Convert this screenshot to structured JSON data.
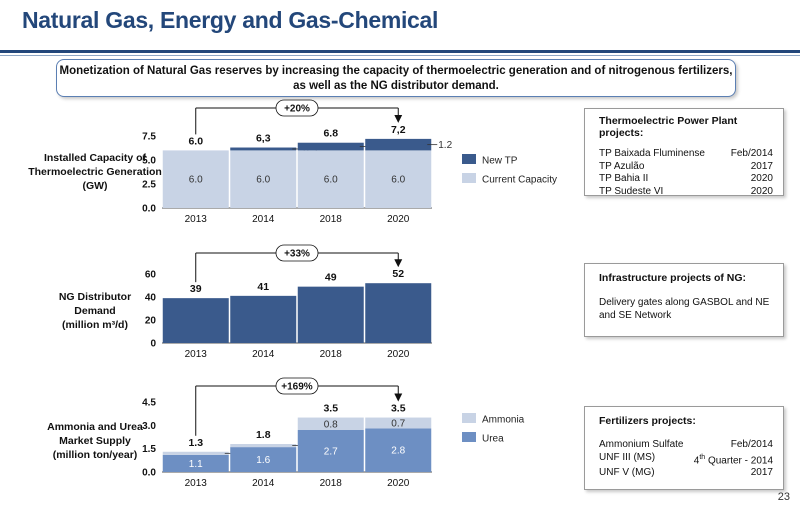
{
  "title": "Natural Gas, Energy and Gas-Chemical",
  "banner": {
    "line1": "Monetization of Natural Gas reserves by increasing the capacity of thermoelectric generation and of nitrogenous fertilizers,",
    "line2": "as well as the NG distributor demand."
  },
  "colors": {
    "dark": "#3a5a8c",
    "light": "#c8d3e5",
    "mid": "#6d8fc3",
    "navy": "#23477a"
  },
  "chart_data": [
    {
      "type": "bar",
      "side_label": [
        "Installed Capacity of",
        "Thermoelectric Generation",
        "(GW)"
      ],
      "categories": [
        "2013",
        "2014",
        "2018",
        "2020"
      ],
      "ylim": [
        0,
        7.5
      ],
      "yticks": [
        "0.0",
        "2.5",
        "5.0",
        "7.5"
      ],
      "series": [
        {
          "name": "Current Capacity",
          "values": [
            6.0,
            6.0,
            6.0,
            6.0
          ],
          "labels": [
            "6.0",
            "6.0",
            "6.0",
            "6.0"
          ]
        },
        {
          "name": "New TP",
          "values": [
            0,
            0.3,
            0.8,
            1.2
          ],
          "labels": [
            "",
            "0.3",
            "0.8",
            "1.2"
          ]
        }
      ],
      "totals": [
        "6.0",
        "6,3",
        "6.8",
        "7,2"
      ],
      "growth": "+20%"
    },
    {
      "type": "bar",
      "side_label": [
        "NG Distributor",
        "Demand",
        "(million m³/d)"
      ],
      "categories": [
        "2013",
        "2014",
        "2018",
        "2020"
      ],
      "ylim": [
        0,
        60
      ],
      "yticks": [
        "0",
        "20",
        "40",
        "60"
      ],
      "series": [
        {
          "values": [
            39,
            41,
            49,
            52
          ]
        }
      ],
      "totals": [
        "39",
        "41",
        "49",
        "52"
      ],
      "growth": "+33%"
    },
    {
      "type": "bar",
      "side_label": [
        "Ammonia and Urea",
        "Market Supply",
        "(million ton/year)"
      ],
      "categories": [
        "2013",
        "2014",
        "2018",
        "2020"
      ],
      "ylim": [
        0,
        4.5
      ],
      "yticks": [
        "0.0",
        "1.5",
        "3.0",
        "4.5"
      ],
      "series": [
        {
          "name": "Urea",
          "values": [
            1.1,
            1.6,
            2.7,
            2.8
          ],
          "labels": [
            "1.1",
            "1.6",
            "2.7",
            "2.8"
          ]
        },
        {
          "name": "Ammonia",
          "values": [
            0.2,
            0.2,
            0.8,
            0.7
          ],
          "labels": [
            "0.2",
            "0.2",
            "0.8",
            "0.7"
          ]
        }
      ],
      "totals": [
        "1.3",
        "1.8",
        "3.5",
        "3.5"
      ],
      "growth": "+169%"
    }
  ],
  "boxes": {
    "thermo": {
      "heading": "Thermoelectric Power Plant projects:",
      "rows": [
        {
          "name": "TP Baixada Fluminense",
          "date": "Feb/2014"
        },
        {
          "name": "TP Azulão",
          "date": "2017"
        },
        {
          "name": "TP Bahia II",
          "date": "2020"
        },
        {
          "name": "TP Sudeste VI",
          "date": "2020"
        }
      ]
    },
    "infra": {
      "heading": "Infrastructure projects of NG:",
      "text": "Delivery gates along GASBOL and NE and SE Network"
    },
    "fert": {
      "heading": "Fertilizers projects:",
      "rows": [
        {
          "name": "Ammonium Sulfate",
          "date": "Feb/2014"
        },
        {
          "name": "UNF III (MS)",
          "date": "4th Quarter - 2014"
        },
        {
          "name": "UNF V (MG)",
          "date": "2017"
        }
      ]
    }
  },
  "page_number": "23"
}
